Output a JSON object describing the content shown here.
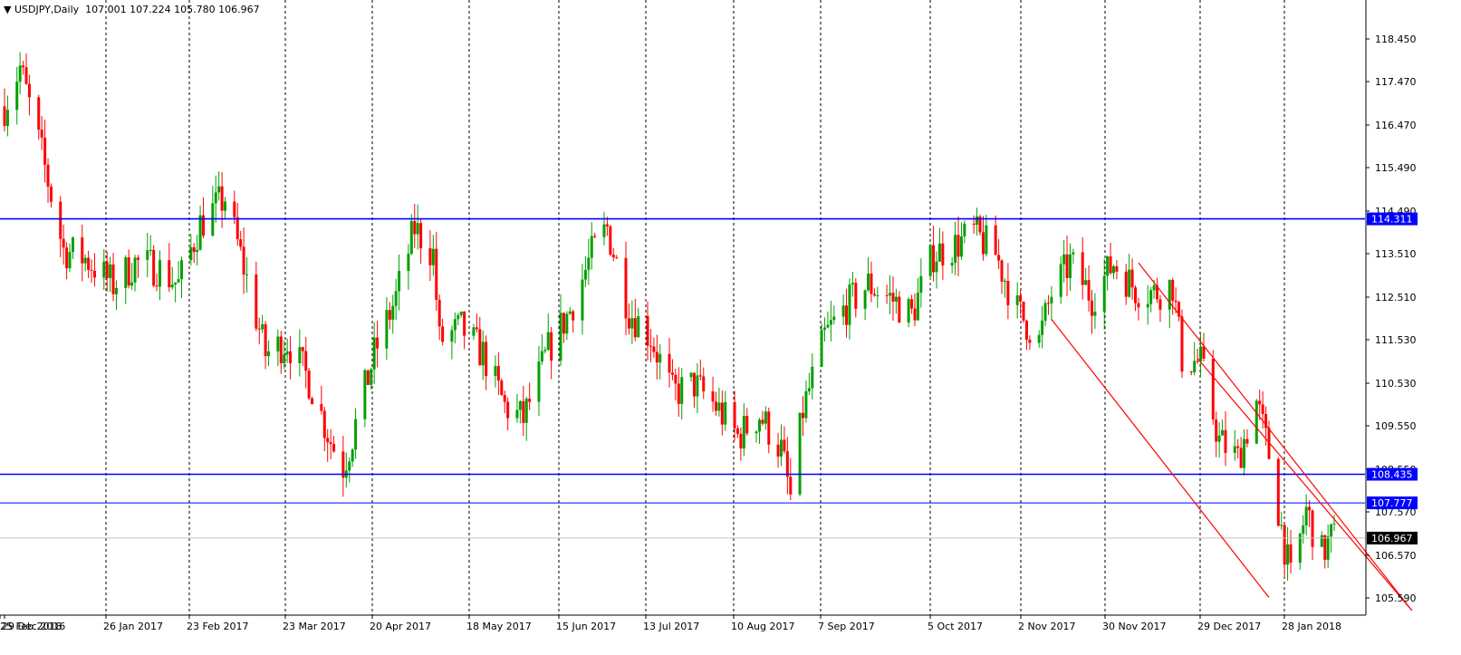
{
  "header": {
    "symbol": "USDJPY,Daily",
    "open": "107.001",
    "high": "107.224",
    "low": "105.780",
    "close": "106.967"
  },
  "chart_data": {
    "type": "candlestick",
    "title": "USDJPY,Daily",
    "ylim": [
      105.2,
      118.9
    ],
    "x_labels": [
      "29 Dec 2016",
      "26 Jan 2017",
      "23 Feb 2017",
      "23 Mar 2017",
      "20 Apr 2017",
      "18 May 2017",
      "15 Jun 2017",
      "13 Jul 2017",
      "10 Aug 2017",
      "7 Sep 2017",
      "5 Oct 2017",
      "2 Nov 2017",
      "30 Nov 2017",
      "29 Dec 2017",
      "28 Jan 2018",
      "25 Feb 2018"
    ],
    "y_ticks": [
      "118.450",
      "117.470",
      "116.470",
      "115.490",
      "114.490",
      "113.510",
      "112.510",
      "111.530",
      "110.530",
      "109.550",
      "108.550",
      "107.570",
      "106.570",
      "105.590"
    ],
    "horizontal_levels": [
      {
        "value": 114.311,
        "label": "114.311",
        "color": "#0000ff"
      },
      {
        "value": 108.435,
        "label": "108.435",
        "color": "#0000ff"
      },
      {
        "value": 107.777,
        "label": "107.777",
        "color": "#0000ff"
      }
    ],
    "current_price": {
      "value": 106.967,
      "label": "106.967"
    },
    "channel_lines": [
      {
        "color": "#ff0000",
        "points": [
          [
            "2017-12-01",
            112.0
          ],
          [
            "2018-02-09",
            105.6
          ]
        ]
      },
      {
        "color": "#ff0000",
        "points": [
          [
            "2017-12-29",
            113.3
          ],
          [
            "2018-03-27",
            105.3
          ]
        ]
      },
      {
        "color": "#ff0000",
        "points": [
          [
            "2018-01-17",
            111.1
          ],
          [
            "2018-03-27",
            105.3
          ]
        ]
      }
    ],
    "price_path": [
      [
        "2016-12-29",
        116.9
      ],
      [
        "2017-01-03",
        117.8
      ],
      [
        "2017-01-10",
        115.8
      ],
      [
        "2017-01-17",
        113.6
      ],
      [
        "2017-01-24",
        113.4
      ],
      [
        "2017-02-02",
        112.8
      ],
      [
        "2017-02-09",
        113.3
      ],
      [
        "2017-02-16",
        113.2
      ],
      [
        "2017-02-23",
        112.8
      ],
      [
        "2017-03-02",
        114.2
      ],
      [
        "2017-03-10",
        114.8
      ],
      [
        "2017-03-16",
        113.2
      ],
      [
        "2017-03-23",
        111.2
      ],
      [
        "2017-03-30",
        111.5
      ],
      [
        "2017-04-06",
        110.6
      ],
      [
        "2017-04-13",
        109.2
      ],
      [
        "2017-04-17",
        108.6
      ],
      [
        "2017-04-20",
        109.3
      ],
      [
        "2017-04-27",
        111.2
      ],
      [
        "2017-05-04",
        112.5
      ],
      [
        "2017-05-10",
        114.1
      ],
      [
        "2017-05-16",
        113.5
      ],
      [
        "2017-05-18",
        111.5
      ],
      [
        "2017-05-25",
        111.8
      ],
      [
        "2017-06-01",
        111.2
      ],
      [
        "2017-06-08",
        110.0
      ],
      [
        "2017-06-14",
        109.7
      ],
      [
        "2017-06-22",
        111.3
      ],
      [
        "2017-06-29",
        112.2
      ],
      [
        "2017-07-06",
        113.5
      ],
      [
        "2017-07-11",
        114.1
      ],
      [
        "2017-07-18",
        112.2
      ],
      [
        "2017-07-25",
        111.6
      ],
      [
        "2017-08-01",
        110.3
      ],
      [
        "2017-08-08",
        110.5
      ],
      [
        "2017-08-15",
        110.0
      ],
      [
        "2017-08-22",
        109.3
      ],
      [
        "2017-08-29",
        109.8
      ],
      [
        "2017-09-05",
        109.0
      ],
      [
        "2017-09-08",
        107.9
      ],
      [
        "2017-09-12",
        109.9
      ],
      [
        "2017-09-19",
        111.6
      ],
      [
        "2017-09-26",
        112.3
      ],
      [
        "2017-10-03",
        112.8
      ],
      [
        "2017-10-10",
        112.5
      ],
      [
        "2017-10-17",
        112.1
      ],
      [
        "2017-10-24",
        113.5
      ],
      [
        "2017-10-31",
        113.7
      ],
      [
        "2017-11-06",
        114.0
      ],
      [
        "2017-11-13",
        113.5
      ],
      [
        "2017-11-20",
        112.2
      ],
      [
        "2017-11-27",
        111.5
      ],
      [
        "2017-12-01",
        112.6
      ],
      [
        "2017-12-07",
        113.3
      ],
      [
        "2017-12-14",
        112.5
      ],
      [
        "2017-12-21",
        113.3
      ],
      [
        "2017-12-28",
        112.7
      ],
      [
        "2018-01-03",
        112.6
      ],
      [
        "2018-01-09",
        112.8
      ],
      [
        "2018-01-12",
        111.1
      ],
      [
        "2018-01-18",
        111.0
      ],
      [
        "2018-01-24",
        109.2
      ],
      [
        "2018-01-30",
        108.8
      ],
      [
        "2018-02-05",
        110.1
      ],
      [
        "2018-02-09",
        108.9
      ],
      [
        "2018-02-13",
        107.2
      ],
      [
        "2018-02-16",
        106.0
      ],
      [
        "2018-02-21",
        107.6
      ],
      [
        "2018-02-26",
        106.6
      ],
      [
        "2018-03-01",
        106.97
      ]
    ]
  },
  "colors": {
    "up_candle": "#00a000",
    "down_candle": "#ff0000",
    "level_line": "#0000ff",
    "channel": "#ff0000",
    "grid": "#000000"
  }
}
